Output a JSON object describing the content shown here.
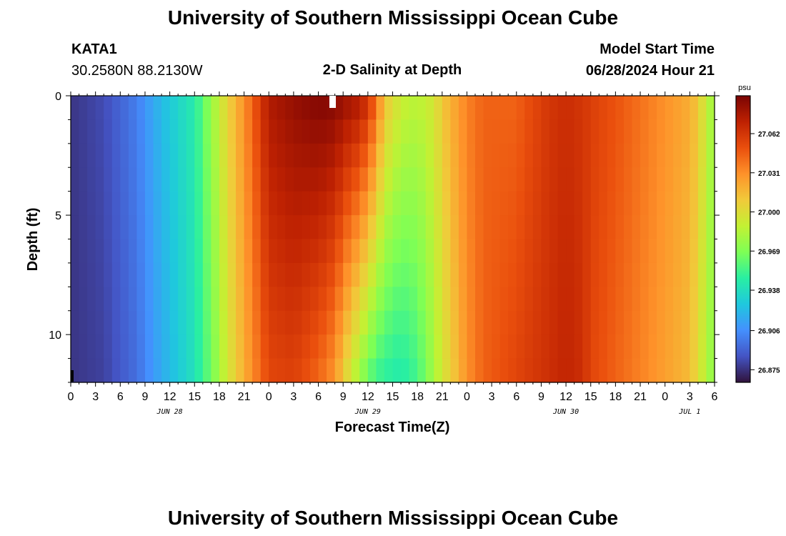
{
  "header": {
    "title": "University of Southern Mississippi Ocean Cube",
    "station": "KATA1",
    "coords": "30.2580N  88.2130W",
    "subtitle": "2-D Salinity at Depth",
    "model_label": "Model Start Time",
    "model_time": "06/28/2024 Hour 21"
  },
  "footer": {
    "title": "University of Southern Mississippi Ocean Cube"
  },
  "chart_data": {
    "type": "heatmap",
    "title": "2-D Salinity at Depth",
    "xlabel": "Forecast Time(Z)",
    "ylabel": "Depth (ft)",
    "x_start_hour": 0,
    "x_end_hour": 78,
    "x_range": [
      "JUN 28 00Z",
      "JUL 1 06Z"
    ],
    "ylim": [
      0,
      12
    ],
    "y_inverted": true,
    "x_ticks": [
      "0",
      "3",
      "6",
      "9",
      "12",
      "15",
      "18",
      "21",
      "0",
      "3",
      "6",
      "9",
      "12",
      "15",
      "18",
      "21",
      "0",
      "3",
      "6",
      "9",
      "12",
      "15",
      "18",
      "21",
      "0",
      "3",
      "6"
    ],
    "y_ticks": [
      "0",
      "5",
      "10"
    ],
    "date_labels": [
      {
        "label": "JUN 28",
        "hour": 12
      },
      {
        "label": "JUN 29",
        "hour": 36
      },
      {
        "label": "JUN 30",
        "hour": 60
      },
      {
        "label": "JUL 1",
        "hour": 75
      }
    ],
    "colorbar": {
      "unit": "psu",
      "ticks": [
        "27.062",
        "27.031",
        "27.000",
        "26.969",
        "26.938",
        "26.906",
        "26.875"
      ],
      "min": 26.865,
      "max": 27.092,
      "colormap": [
        "#30123b",
        "#4454c4",
        "#4490fe",
        "#1fc8de",
        "#29efa2",
        "#7eff55",
        "#c3f133",
        "#f1ca3a",
        "#fe922a",
        "#ea4f0d",
        "#be2102",
        "#7a0403"
      ]
    },
    "depth_levels_ft": [
      0.5,
      1.5,
      2.5,
      3.5,
      4.5,
      5.5,
      6.5,
      7.5,
      8.5,
      9.5,
      10.5,
      11.5
    ],
    "salinity_profile": {
      "hours": [
        0,
        4,
        8,
        10,
        12,
        15,
        17,
        19,
        21,
        24,
        27,
        30,
        32,
        33,
        35,
        36,
        37,
        38,
        40,
        42,
        44,
        45,
        48,
        50,
        52,
        54,
        55,
        58,
        60,
        62,
        63,
        66,
        69,
        72,
        75,
        76,
        77,
        78
      ],
      "surface_psu": [
        26.876,
        26.883,
        26.9,
        26.915,
        26.928,
        26.945,
        26.975,
        27.005,
        27.03,
        27.075,
        27.083,
        27.088,
        27.086,
        27.08,
        27.072,
        27.06,
        27.04,
        27.01,
        26.99,
        26.985,
        26.995,
        27.01,
        27.035,
        27.045,
        27.045,
        27.045,
        27.05,
        27.062,
        27.066,
        27.062,
        27.058,
        27.05,
        27.04,
        27.03,
        27.02,
        27.01,
        26.99,
        26.975
      ],
      "bottom_psu": [
        26.876,
        26.88,
        26.895,
        26.91,
        26.922,
        26.94,
        26.965,
        26.995,
        27.02,
        27.055,
        27.058,
        27.045,
        27.03,
        27.01,
        26.98,
        26.965,
        26.955,
        26.95,
        26.945,
        26.955,
        26.98,
        26.995,
        27.03,
        27.045,
        27.05,
        27.055,
        27.058,
        27.065,
        27.07,
        27.065,
        27.055,
        27.045,
        27.035,
        27.025,
        27.015,
        27.0,
        26.985,
        26.97
      ]
    }
  }
}
